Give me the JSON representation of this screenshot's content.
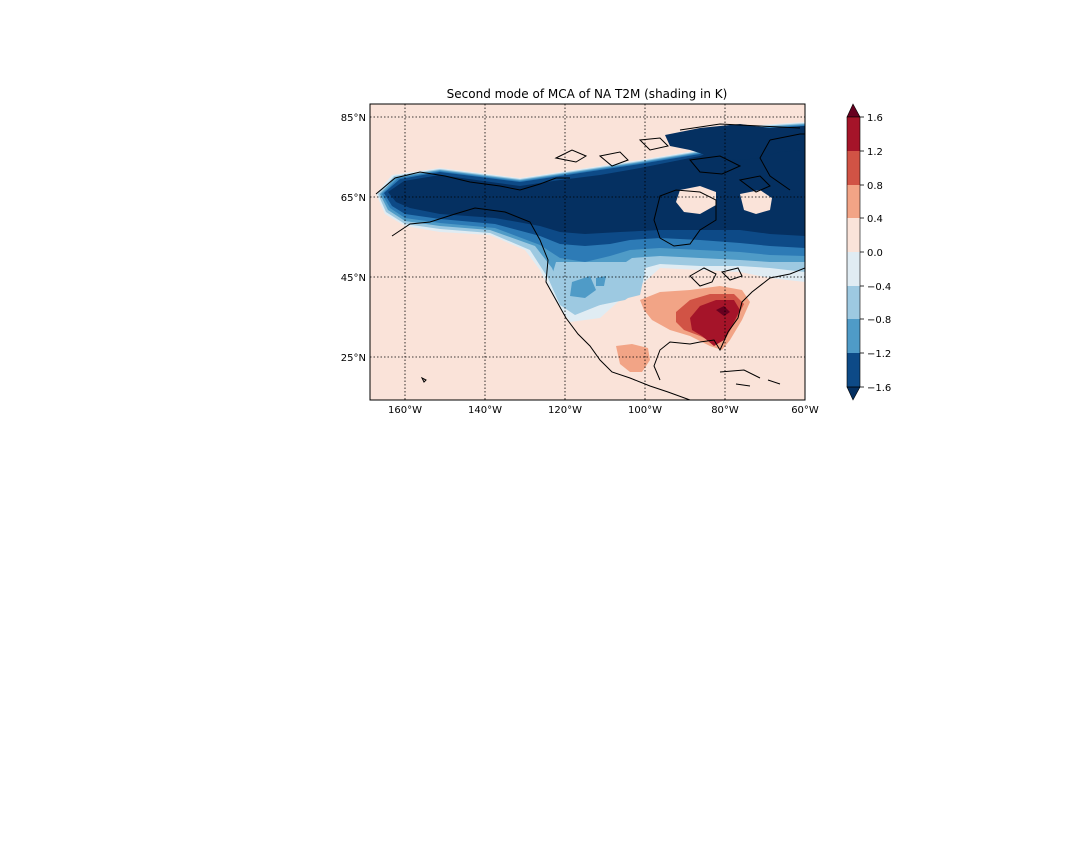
{
  "title": "Second mode of MCA of NA T2M (shading in K)",
  "map": {
    "lon_range": [
      -169,
      -60
    ],
    "lat_range": [
      14,
      88
    ],
    "background_level_color": "#fae3d9",
    "coastline_color": "#000000",
    "gridline_style": "dotted",
    "lon_ticks": [
      {
        "value": -160,
        "label": "160°W"
      },
      {
        "value": -140,
        "label": "140°W"
      },
      {
        "value": -120,
        "label": "120°W"
      },
      {
        "value": -100,
        "label": "100°W"
      },
      {
        "value": -80,
        "label": "80°W"
      },
      {
        "value": -60,
        "label": "60°W"
      }
    ],
    "lat_ticks": [
      {
        "value": 85,
        "label": "85°N"
      },
      {
        "value": 65,
        "label": "65°N"
      },
      {
        "value": 45,
        "label": "45°N"
      },
      {
        "value": 25,
        "label": "25°N"
      }
    ]
  },
  "colorbar": {
    "levels": [
      -1.6,
      -1.2,
      -0.8,
      -0.4,
      0.0,
      0.4,
      0.8,
      1.2,
      1.6
    ],
    "tick_labels": [
      "−1.6",
      "−1.2",
      "−0.8",
      "−0.4",
      "0.0",
      "0.4",
      "0.8",
      "1.2",
      "1.6"
    ],
    "colors": [
      "#0d4a87",
      "#2d7bb6",
      "#4f9bc7",
      "#9dc9e1",
      "#e0ecf3",
      "#fae3d9",
      "#f2a486",
      "#d15345",
      "#a51429"
    ],
    "extend": "both",
    "under_color": "#053061",
    "over_color": "#67001f"
  },
  "chart_data": {
    "type": "heatmap",
    "title": "Second mode of MCA of NA T2M (shading in K)",
    "variable": "T2M",
    "units": "K",
    "xlabel": "",
    "ylabel": "",
    "x_range": [
      -169,
      -60
    ],
    "y_range": [
      14,
      88
    ],
    "color_levels": [
      -1.6,
      -1.2,
      -0.8,
      -0.4,
      0.0,
      0.4,
      0.8,
      1.2,
      1.6
    ],
    "regions": [
      {
        "name": "",
        "value": -1.8,
        "approx_extent_lon": [
          -168,
          -60
        ],
        "approx_extent_lat": [
          55,
          84
        ]
      },
      {
        "name": "",
        "value": -1.0,
        "approx_extent_lon": [
          -125,
          -100
        ],
        "approx_extent_lat": [
          40,
          55
        ]
      },
      {
        "name": "",
        "value": -0.3,
        "approx_extent_lon": [
          -100,
          -65
        ],
        "approx_extent_lat": [
          46,
          52
        ]
      },
      {
        "name": "",
        "value": 1.4,
        "approx_extent_lon": [
          -92,
          -76
        ],
        "approx_extent_lat": [
          28,
          42
        ]
      },
      {
        "name": "",
        "value": 1.7,
        "approx_extent_lon": [
          -88,
          -78
        ],
        "approx_extent_lat": [
          32,
          39
        ]
      },
      {
        "name": "",
        "value": 0.6,
        "approx_extent_lon": [
          -106,
          -97
        ],
        "approx_extent_lat": [
          21,
          28
        ]
      }
    ]
  }
}
